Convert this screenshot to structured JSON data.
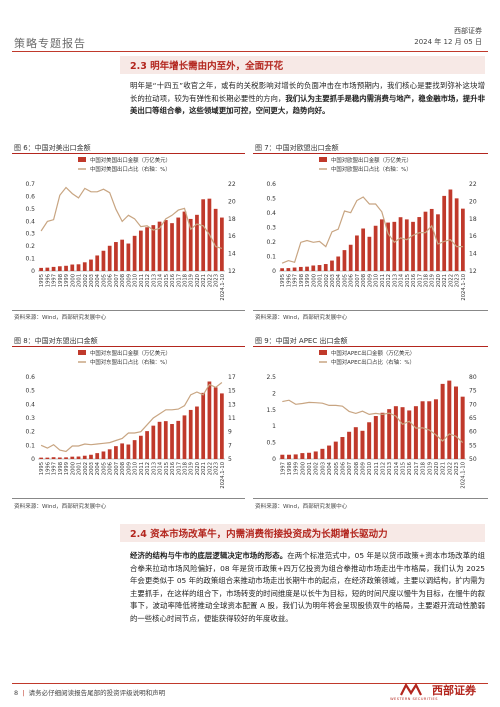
{
  "header": {
    "left_title": "策略专题报告",
    "right_brand": "西部证券",
    "right_date": "2024 年 12 月 05 日"
  },
  "section1": {
    "title": "2.3 明年增长需由内至外，全面开花",
    "para_normal": "明年是“十四五”收官之年，或有的关税影响对增长的负面冲击在市场预期内，我们核心是要找到弥补这块增长的拉动项，较为有弹性和长期必要性的方向，",
    "para_bold": "我们认为主要抓手是稳内需消费与地产，稳金融市场，提升非美出口等组合拳，这些领域更加可控，空间更大，趋势向好。"
  },
  "figures": [
    {
      "label": "图 6：中国对美出口金额",
      "source": "资料来源：Wind，西部研究发展中心",
      "legend": [
        "中国对美国出口金额（万亿美元）",
        "中国对美国出口占比（右轴：%）"
      ],
      "chart_data": {
        "type": "bar",
        "x": [
          "1995",
          "1996",
          "1997",
          "1998",
          "1999",
          "2000",
          "2001",
          "2002",
          "2003",
          "2004",
          "2005",
          "2006",
          "2007",
          "2008",
          "2009",
          "2010",
          "2011",
          "2012",
          "2013",
          "2014",
          "2015",
          "2016",
          "2017",
          "2018",
          "2019",
          "2020",
          "2021",
          "2022",
          "2023",
          "2024.1-10"
        ],
        "tick_labels": [
          "1995",
          "1996",
          "1997",
          "1998",
          "1999",
          "2000",
          "2001",
          "2002",
          "2003",
          "2004",
          "2005",
          "2006",
          "2007",
          "2008",
          "2009",
          "2010",
          "2011",
          "2012",
          "2013",
          "2014",
          "2015",
          "2016",
          "2017",
          "2018",
          "2019",
          "2020",
          "2021",
          "2022",
          "2023",
          "2024.1-10"
        ],
        "series": [
          {
            "name": "中国对美国出口金额（万亿美元）",
            "values": [
              0.025,
              0.027,
              0.033,
              0.038,
              0.042,
              0.052,
              0.054,
              0.07,
              0.092,
              0.125,
              0.163,
              0.203,
              0.233,
              0.252,
              0.221,
              0.283,
              0.325,
              0.352,
              0.369,
              0.397,
              0.41,
              0.385,
              0.43,
              0.478,
              0.419,
              0.452,
              0.577,
              0.582,
              0.5,
              0.43
            ]
          },
          {
            "name": "中国对美国出口占比（右轴：%）",
            "values": [
              16.6,
              17.7,
              17.9,
              20.7,
              21.6,
              20.9,
              20.4,
              21.5,
              21.1,
              21.1,
              21.4,
              21.0,
              19.1,
              17.7,
              18.4,
              18.0,
              17.1,
              17.2,
              16.7,
              16.9,
              18.0,
              18.4,
              19.0,
              19.2,
              16.8,
              17.4,
              17.2,
              16.2,
              14.8,
              14.6
            ]
          }
        ],
        "ylim": [
          0,
          0.7
        ],
        "y_ticks": [
          "0",
          "0.1",
          "0.2",
          "0.3",
          "0.4",
          "0.5",
          "0.6",
          "0.7"
        ],
        "y2lim": [
          12,
          22
        ],
        "y2_ticks": [
          "12",
          "14",
          "16",
          "18",
          "20",
          "22"
        ],
        "colors": {
          "bar": "#c0392b",
          "line": "#c8a582"
        }
      }
    },
    {
      "label": "图 7：中国对欧盟出口金额",
      "source": "资料来源：Wind，西部研究发展中心",
      "legend": [
        "中国对欧盟出口金额（万亿美元）",
        "中国对欧盟出口占比（右轴：%）"
      ],
      "chart_data": {
        "type": "bar",
        "x": [
          "1995",
          "1996",
          "1997",
          "1998",
          "1999",
          "2000",
          "2001",
          "2002",
          "2003",
          "2004",
          "2005",
          "2006",
          "2007",
          "2008",
          "2009",
          "2010",
          "2011",
          "2012",
          "2013",
          "2014",
          "2015",
          "2016",
          "2017",
          "2018",
          "2019",
          "2020",
          "2021",
          "2022",
          "2023",
          "2024.1-10"
        ],
        "tick_labels": [
          "1995",
          "1996",
          "1997",
          "1998",
          "1999",
          "2000",
          "2001",
          "2002",
          "2003",
          "2004",
          "2005",
          "2006",
          "2007",
          "2008",
          "2009",
          "2010",
          "2011",
          "2012",
          "2013",
          "2014",
          "2015",
          "2016",
          "2017",
          "2018",
          "2019",
          "2020",
          "2021",
          "2022",
          "2023",
          "2024.1-10"
        ],
        "series": [
          {
            "name": "中国对欧盟出口金额（万亿美元）",
            "values": [
              0.019,
              0.02,
              0.024,
              0.028,
              0.03,
              0.038,
              0.041,
              0.048,
              0.072,
              0.1,
              0.144,
              0.181,
              0.245,
              0.293,
              0.236,
              0.312,
              0.356,
              0.334,
              0.339,
              0.371,
              0.356,
              0.339,
              0.372,
              0.409,
              0.428,
              0.391,
              0.518,
              0.562,
              0.501,
              0.43
            ]
          },
          {
            "name": "中国对欧盟出口占比（右轴：%）",
            "values": [
              12.9,
              13.2,
              13.0,
              15.3,
              15.5,
              15.3,
              15.4,
              14.8,
              16.5,
              16.8,
              18.9,
              18.7,
              20.1,
              20.5,
              19.7,
              19.7,
              18.8,
              16.3,
              15.3,
              15.8,
              15.6,
              16.1,
              16.4,
              16.4,
              17.2,
              15.1,
              15.4,
              15.6,
              14.8,
              14.8
            ]
          }
        ],
        "ylim": [
          0,
          0.6
        ],
        "y_ticks": [
          "0",
          "0.1",
          "0.2",
          "0.3",
          "0.4",
          "0.5",
          "0.6"
        ],
        "y2lim": [
          12,
          22
        ],
        "y2_ticks": [
          "12",
          "14",
          "16",
          "18",
          "20",
          "22"
        ],
        "colors": {
          "bar": "#c0392b",
          "line": "#c8a582"
        }
      }
    },
    {
      "label": "图 8：中国对东盟出口金额",
      "source": "资料来源：Wind，西部研究发展中心",
      "legend": [
        "中国对东盟出口金额（万亿美元）",
        "中国对东盟出口占比（右轴：%）"
      ],
      "chart_data": {
        "type": "bar",
        "x": [
          "1995",
          "1996",
          "1997",
          "1998",
          "1999",
          "2000",
          "2001",
          "2002",
          "2003",
          "2004",
          "2005",
          "2006",
          "2007",
          "2008",
          "2009",
          "2010",
          "2011",
          "2012",
          "2013",
          "2014",
          "2015",
          "2016",
          "2017",
          "2018",
          "2019",
          "2020",
          "2021",
          "2022",
          "2023",
          "2024.1-10"
        ],
        "tick_labels": [
          "1995",
          "1996",
          "1997",
          "1998",
          "1999",
          "2000",
          "2001",
          "2002",
          "2003",
          "2004",
          "2005",
          "2006",
          "2007",
          "2008",
          "2009",
          "2010",
          "2011",
          "2012",
          "2013",
          "2014",
          "2015",
          "2016",
          "2017",
          "2018",
          "2019",
          "2020",
          "2021",
          "2022",
          "2023",
          "2024.1-10"
        ],
        "series": [
          {
            "name": "中国对东盟出口金额（万亿美元）",
            "values": [
              0.01,
              0.01,
              0.013,
              0.011,
              0.012,
              0.017,
              0.018,
              0.024,
              0.031,
              0.043,
              0.055,
              0.071,
              0.094,
              0.114,
              0.106,
              0.138,
              0.17,
              0.204,
              0.244,
              0.272,
              0.277,
              0.256,
              0.279,
              0.319,
              0.359,
              0.384,
              0.484,
              0.567,
              0.524,
              0.48
            ]
          },
          {
            "name": "中国对东盟出口占比（右轴：%）",
            "values": [
              7.0,
              6.6,
              7.1,
              6.3,
              6.1,
              6.9,
              6.9,
              7.2,
              7.1,
              7.2,
              7.3,
              7.4,
              7.7,
              8.0,
              8.8,
              8.8,
              9.0,
              10.0,
              11.0,
              11.6,
              12.2,
              12.2,
              12.3,
              12.8,
              14.4,
              14.8,
              14.4,
              15.9,
              15.5,
              16.2
            ]
          }
        ],
        "ylim": [
          0,
          0.6
        ],
        "y_ticks": [
          "0",
          "0.1",
          "0.2",
          "0.3",
          "0.4",
          "0.5",
          "0.6"
        ],
        "y2lim": [
          5,
          17
        ],
        "y2_ticks": [
          "5",
          "7",
          "9",
          "11",
          "13",
          "15",
          "17"
        ],
        "colors": {
          "bar": "#c0392b",
          "line": "#c8a582"
        }
      }
    },
    {
      "label": "图 9：中国对 APEC 出口金额",
      "source": "资料来源：Wind，西部研究发展中心",
      "legend": [
        "中国对APEC出口金额（万亿美元）",
        "中国对APEC出口占比（右轴：%）"
      ],
      "chart_data": {
        "type": "bar",
        "x": [
          "1997",
          "1998",
          "1999",
          "2000",
          "2001",
          "2002",
          "2003",
          "2004",
          "2005",
          "2006",
          "2007",
          "2008",
          "2009",
          "2010",
          "2011",
          "2012",
          "2013",
          "2014",
          "2015",
          "2016",
          "2017",
          "2018",
          "2019",
          "2020",
          "2021",
          "2022",
          "2023",
          "2024.1-10"
        ],
        "tick_labels": [
          "1997",
          "1998",
          "1999",
          "2000",
          "2001",
          "2002",
          "2003",
          "2004",
          "2005",
          "2006",
          "2007",
          "2008",
          "2009",
          "2010",
          "2011",
          "2012",
          "2013",
          "2014",
          "2015",
          "2016",
          "2017",
          "2018",
          "2019",
          "2020",
          "2021",
          "2022",
          "2023",
          "2024.1-10"
        ],
        "series": [
          {
            "name": "中国对APEC出口金额（万亿美元）",
            "values": [
              0.13,
              0.13,
              0.14,
              0.18,
              0.19,
              0.23,
              0.31,
              0.41,
              0.53,
              0.67,
              0.83,
              0.97,
              0.86,
              1.12,
              1.31,
              1.41,
              1.52,
              1.61,
              1.58,
              1.48,
              1.61,
              1.76,
              1.76,
              1.82,
              2.29,
              2.39,
              2.21,
              1.9
            ]
          },
          {
            "name": "中国对APEC出口占比（右轴：%）",
            "values": [
              71.0,
              71.5,
              70.0,
              70.3,
              70.7,
              70.6,
              70.4,
              69.6,
              69.6,
              69.3,
              67.4,
              66.7,
              67.5,
              66.3,
              66.7,
              66.3,
              66.8,
              65.7,
              62.7,
              63.8,
              61.3,
              61.4,
              60.6,
              58.8,
              56.6,
              59.2,
              58.3,
              56.0
            ]
          }
        ],
        "ylim": [
          0,
          2.5
        ],
        "y_ticks": [
          "0",
          "0.5",
          "1",
          "1.5",
          "2",
          "2.5"
        ],
        "y2lim": [
          50,
          80
        ],
        "y2_ticks": [
          "50",
          "55",
          "60",
          "65",
          "70",
          "75",
          "80"
        ],
        "colors": {
          "bar": "#c0392b",
          "line": "#c8a582"
        }
      }
    }
  ],
  "section2": {
    "title": "2.4 资本市场改革牛，内需消费衔接投资成为长期增长驱动力",
    "para_bold": "经济的结构与牛市的底层逻辑决定市场的形态。",
    "para_normal": "在两个标准范式中，05 年是以货币政策+资本市场改革的组合拳来拉动市场风险偏好，08 年是货币政策+四万亿投资为组合拳推动市场走出牛市格局，我们认为 2025 年会更类似于 05 年的政策组合来推动市场走出长期牛市的起点，在经济政策领域，主要以调结构，扩内需为主要抓手，在这样的组合下，市场转变的时间维度是以长牛为目标，短的时间尺度以慢牛为目标，在慢牛的叙事下，波动率降低将推动全球资本配置 A 股，我们认为明年将会呈现股债双牛的格局，主要避开流动性脆弱的一些核心时间节点，便能获得较好的年度收益。"
  },
  "footer": {
    "page": "8",
    "disclaimer": "请务必仔细阅读报告尾部的投资评级说明和声明",
    "logo_text": "西部证券",
    "logo_sub": "WESTERN SECURITIES"
  }
}
